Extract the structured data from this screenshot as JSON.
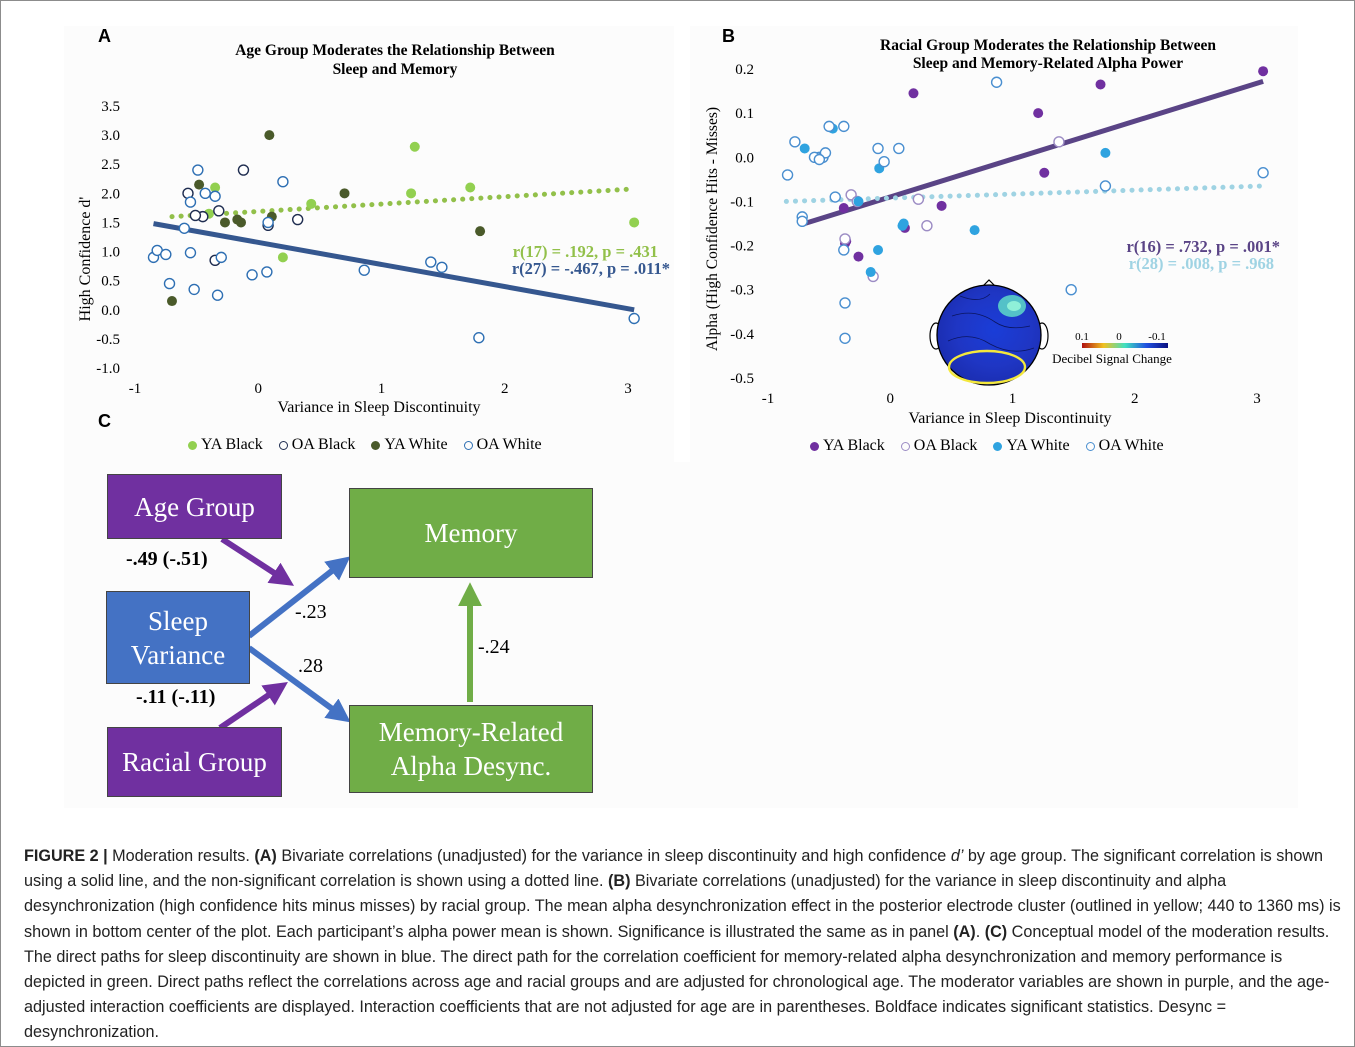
{
  "panels": {
    "a_letter": "A",
    "b_letter": "B",
    "c_letter": "C"
  },
  "panel_a": {
    "title_line1": "Age Group Moderates the Relationship Between",
    "title_line2": "Sleep and Memory",
    "ylabel": "High Confidence d'",
    "xlabel": "Variance in Sleep Discontinuity",
    "stat_ya": "r(17) = .192, p = .431",
    "stat_oa": "r(27) = -.467, p = .011*",
    "legend": [
      "YA Black",
      "OA Black",
      "YA White",
      "OA White"
    ]
  },
  "panel_b": {
    "title_line1": "Racial Group Moderates the Relationship Between",
    "title_line2": "Sleep and Memory-Related Alpha Power",
    "ylabel": "Alpha (High Confidence Hits - Misses)",
    "xlabel": "Variance in Sleep Discontinuity",
    "stat_black": "r(16) = .732, p = .001*",
    "stat_white": "r(28) = .008, p = .968",
    "colorbar_ticks": [
      "0.1",
      "0",
      "-0.1"
    ],
    "colorbar_label": "Decibel Signal Change",
    "legend": [
      "YA Black",
      "OA Black",
      "YA White",
      "OA White"
    ]
  },
  "panel_c": {
    "age_group": "Age Group",
    "sleep_line1": "Sleep",
    "sleep_line2": "Variance",
    "racial_group": "Racial Group",
    "memory": "Memory",
    "alpha_line1": "Memory-Related",
    "alpha_line2": "Alpha Desync.",
    "coef_age": "-.49 (-.51)",
    "coef_race": "-.11 (-.11)",
    "coef_sleep_memory": "-.23",
    "coef_sleep_alpha": ".28",
    "coef_alpha_memory": "-.24"
  },
  "caption": {
    "fig": "FIGURE 2 |",
    "s1": " Moderation results. ",
    "a": "(A)",
    "s2": " Bivariate correlations (unadjusted) for the variance in sleep discontinuity and high confidence ",
    "dprime": "d’",
    "s3": " by age group. The significant correlation is shown using a solid line, and the non-significant correlation is shown using a dotted line. ",
    "b": "(B)",
    "s4": " Bivariate correlations (unadjusted) for the variance in sleep discontinuity and alpha desynchronization (high confidence hits minus misses) by racial group. The mean alpha desynchronization effect in the posterior electrode cluster (outlined in yellow; 440 to 1360 ms) is shown in bottom center of the plot. Each participant’s alpha power mean is shown. Significance is illustrated the same as in panel ",
    "a2": "(A)",
    "s5": ". ",
    "c": "(C)",
    "s6": " Conceptual model of the moderation results. The direct paths for sleep discontinuity are shown in blue. The direct path for the correlation coefficient for memory-related alpha desynchronization and memory performance is depicted in green. Direct paths reflect the correlations across age and racial groups and are adjusted for chronological age. The moderator variables are shown in purple, and the age-adjusted interaction coefficients are displayed. Interaction coefficients that are not adjusted for age are in parentheses. Boldface indicates significant statistics. Desync = desynchronization."
  },
  "colors": {
    "ya_green": "#92d050",
    "oa_green": "#4a5a2a",
    "oa_blue": "#2e5a8e",
    "ya_purple": "#7030a0",
    "oa_purple_ring": "#8e7cb8",
    "ya_cyan": "#2fa3e0",
    "oa_cyan": "#92cddc",
    "line_a_solid": "#35578f",
    "line_a_dotted": "#92c04a",
    "line_b_solid": "#5a4486",
    "line_b_dotted": "#9fd3e3"
  },
  "chart_data": [
    {
      "type": "scatter",
      "title": "Age Group Moderates the Relationship Between Sleep and Memory",
      "xlabel": "Variance in Sleep Discontinuity",
      "ylabel": "High Confidence d'",
      "xlim": [
        -1,
        3
      ],
      "ylim": [
        -1.0,
        3.5
      ],
      "xticks": [
        -1,
        0,
        1,
        2,
        3
      ],
      "yticks": [
        "3.5",
        "3.0",
        "2.5",
        "2.0",
        "1.5",
        "1.0",
        "0.5",
        "0.0",
        "-0.5",
        "-1.0"
      ],
      "grid": false,
      "legend_position": "bottom",
      "series": [
        {
          "name": "YA Black",
          "filled": true,
          "color": "#92d050",
          "points": [
            [
              -0.35,
              2.1
            ],
            [
              0.2,
              0.9
            ],
            [
              0.43,
              1.82
            ],
            [
              1.24,
              2.0
            ],
            [
              1.27,
              2.8
            ],
            [
              1.72,
              2.1
            ],
            [
              3.05,
              1.5
            ],
            [
              -0.4,
              1.65
            ]
          ]
        },
        {
          "name": "OA Black",
          "filled": false,
          "color": "#1f2d50",
          "points": [
            [
              -0.57,
              2.0
            ],
            [
              -0.45,
              1.6
            ],
            [
              -0.32,
              1.7
            ],
            [
              -0.12,
              2.4
            ],
            [
              -0.35,
              0.85
            ],
            [
              0.32,
              1.55
            ],
            [
              0.08,
              1.45
            ],
            [
              -0.51,
              1.62
            ]
          ]
        },
        {
          "name": "YA White",
          "filled": true,
          "color": "#4a5a2a",
          "points": [
            [
              -0.48,
              2.15
            ],
            [
              0.09,
              3.0
            ],
            [
              0.7,
              2.0
            ],
            [
              -0.27,
              1.5
            ],
            [
              -0.17,
              1.55
            ],
            [
              -0.14,
              1.5
            ],
            [
              0.11,
              1.6
            ],
            [
              1.8,
              1.35
            ],
            [
              -0.7,
              0.15
            ]
          ]
        },
        {
          "name": "OA White",
          "filled": false,
          "color": "#2e6fb3",
          "points": [
            [
              -0.85,
              0.9
            ],
            [
              -0.82,
              1.02
            ],
            [
              -0.75,
              0.95
            ],
            [
              -0.6,
              1.4
            ],
            [
              -0.55,
              1.85
            ],
            [
              -0.49,
              2.4
            ],
            [
              -0.43,
              2.0
            ],
            [
              -0.35,
              1.95
            ],
            [
              -0.33,
              0.25
            ],
            [
              -0.3,
              0.9
            ],
            [
              -0.52,
              0.35
            ],
            [
              -0.72,
              0.45
            ],
            [
              0.2,
              2.2
            ],
            [
              -0.05,
              0.6
            ],
            [
              0.07,
              0.65
            ],
            [
              0.86,
              0.68
            ],
            [
              1.4,
              0.82
            ],
            [
              1.49,
              0.73
            ],
            [
              1.79,
              -0.48
            ],
            [
              3.05,
              -0.15
            ],
            [
              -0.55,
              0.98
            ],
            [
              0.08,
              1.5
            ]
          ]
        }
      ],
      "trendlines": [
        {
          "name": "YA",
          "style": "dotted",
          "color": "#92c04a",
          "from": [
            -0.7,
            1.6
          ],
          "to": [
            3.0,
            2.07
          ]
        },
        {
          "name": "OA",
          "style": "solid",
          "color": "#35578f",
          "from": [
            -0.85,
            1.48
          ],
          "to": [
            3.05,
            0.0
          ]
        }
      ]
    },
    {
      "type": "scatter",
      "title": "Racial Group Moderates the Relationship Between Sleep and Memory-Related Alpha Power",
      "xlabel": "Variance in Sleep Discontinuity",
      "ylabel": "Alpha (High Confidence Hits - Misses)",
      "xlim": [
        -1,
        3
      ],
      "ylim": [
        -0.5,
        0.2
      ],
      "xticks": [
        -1,
        0,
        1,
        2,
        3
      ],
      "yticks": [
        "0.2",
        "0.1",
        "0.0",
        "-0.1",
        "-0.2",
        "-0.3",
        "-0.4",
        "-0.5"
      ],
      "grid": false,
      "legend_position": "bottom",
      "series": [
        {
          "name": "YA Black",
          "filled": true,
          "color": "#7030a0",
          "points": [
            [
              0.19,
              0.145
            ],
            [
              1.21,
              0.1
            ],
            [
              1.72,
              0.165
            ],
            [
              3.05,
              0.195
            ],
            [
              -0.38,
              -0.115
            ],
            [
              -0.37,
              -0.195
            ],
            [
              -0.26,
              -0.225
            ],
            [
              0.12,
              -0.16
            ],
            [
              0.42,
              -0.11
            ],
            [
              1.26,
              -0.035
            ],
            [
              -0.36,
              -0.19
            ]
          ]
        },
        {
          "name": "OA Black",
          "filled": false,
          "color": "#9c8cc4",
          "points": [
            [
              -0.32,
              -0.085
            ],
            [
              -0.27,
              -0.1
            ],
            [
              -0.37,
              -0.185
            ],
            [
              -0.14,
              -0.27
            ],
            [
              0.3,
              -0.155
            ],
            [
              0.23,
              -0.095
            ],
            [
              1.38,
              0.035
            ]
          ]
        },
        {
          "name": "YA White",
          "filled": true,
          "color": "#2fa3e0",
          "points": [
            [
              -0.47,
              0.065
            ],
            [
              -0.7,
              0.02
            ],
            [
              -0.09,
              -0.025
            ],
            [
              -0.26,
              -0.1
            ],
            [
              -0.1,
              -0.21
            ],
            [
              0.1,
              -0.155
            ],
            [
              0.11,
              -0.15
            ],
            [
              0.69,
              -0.165
            ],
            [
              -0.16,
              -0.26
            ],
            [
              1.76,
              0.01
            ]
          ]
        },
        {
          "name": "OA White",
          "filled": false,
          "color": "#4a8fd0",
          "points": [
            [
              -0.84,
              -0.04
            ],
            [
              -0.78,
              0.035
            ],
            [
              -0.72,
              -0.135
            ],
            [
              -0.72,
              -0.145
            ],
            [
              -0.58,
              0.0
            ],
            [
              -0.55,
              0.0
            ],
            [
              -0.53,
              0.01
            ],
            [
              -0.5,
              0.07
            ],
            [
              -0.45,
              -0.09
            ],
            [
              -0.38,
              0.07
            ],
            [
              -0.37,
              -0.33
            ],
            [
              -0.37,
              -0.41
            ],
            [
              -0.38,
              -0.21
            ],
            [
              -0.1,
              0.02
            ],
            [
              0.07,
              0.02
            ],
            [
              -0.05,
              -0.01
            ],
            [
              0.87,
              0.17
            ],
            [
              1.48,
              -0.3
            ],
            [
              1.76,
              -0.065
            ],
            [
              3.05,
              -0.035
            ],
            [
              -0.62,
              0.0
            ],
            [
              -0.58,
              -0.005
            ]
          ]
        }
      ],
      "trendlines": [
        {
          "name": "Black",
          "style": "solid",
          "color": "#5a4486",
          "from": [
            -0.7,
            -0.15
          ],
          "to": [
            3.05,
            0.172
          ]
        },
        {
          "name": "White",
          "style": "dotted",
          "color": "#9fd3e3",
          "from": [
            -0.85,
            -0.1
          ],
          "to": [
            3.05,
            -0.065
          ]
        }
      ]
    }
  ]
}
